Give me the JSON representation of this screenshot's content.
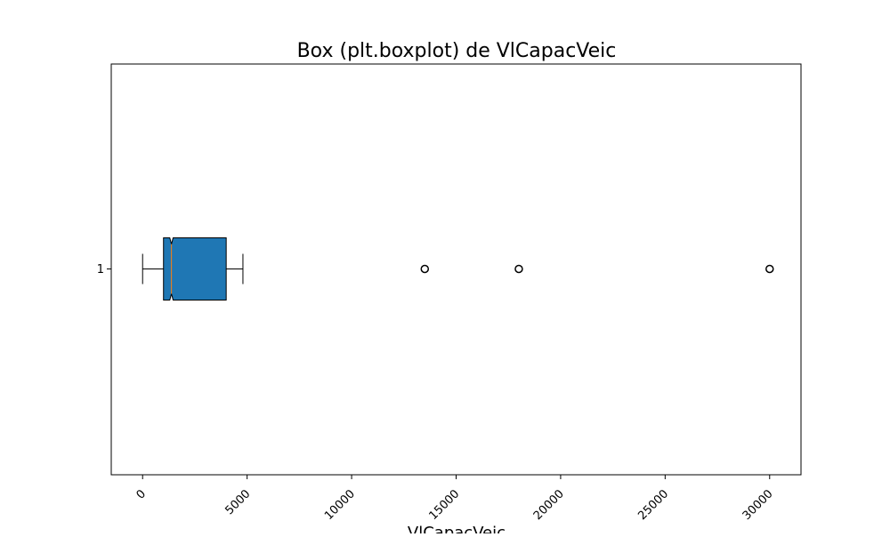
{
  "chart_data": {
    "type": "boxplot",
    "orientation": "horizontal",
    "title": "Box (plt.boxplot) de VlCapacVeic",
    "xlabel": "VlCapacVeic",
    "ylabel": "",
    "xlim": [
      -1500,
      31500
    ],
    "x_ticks": [
      0,
      5000,
      10000,
      15000,
      20000,
      25000,
      30000
    ],
    "x_tick_labels": [
      "0",
      "5000",
      "10000",
      "15000",
      "20000",
      "25000",
      "30000"
    ],
    "x_tick_rotation_deg": 45,
    "categories": [
      "1"
    ],
    "notched": true,
    "box_color": "#1f77b4",
    "median_color": "#ff7f0e",
    "grid": false,
    "boxes": [
      {
        "label": "1",
        "whisker_low": 0,
        "q1": 1000,
        "median": 1380,
        "q3": 4000,
        "whisker_high": 4800,
        "notch_low": 1300,
        "notch_high": 1460,
        "outliers": [
          13500,
          18000,
          30000
        ]
      }
    ]
  }
}
